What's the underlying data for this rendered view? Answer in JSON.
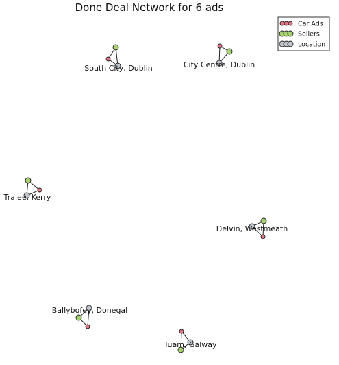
{
  "figure": {
    "title": "Done Deal Network for 6 ads",
    "colors": {
      "car_ad": "#e07584",
      "seller": "#a7d170",
      "location": "#c0c4cc"
    }
  },
  "legend": {
    "items": [
      {
        "key": "car_ad",
        "label": "Car Ads"
      },
      {
        "key": "seller",
        "label": "Sellers"
      },
      {
        "key": "location",
        "label": "Location"
      }
    ]
  },
  "clusters": [
    {
      "location": "South City, Dublin"
    },
    {
      "location": "City Centre, Dublin"
    },
    {
      "location": "Tralee, Kerry"
    },
    {
      "location": "Delvin, Westmeath"
    },
    {
      "location": "Ballybofey, Donegal"
    },
    {
      "location": "Tuam, Galway"
    }
  ]
}
